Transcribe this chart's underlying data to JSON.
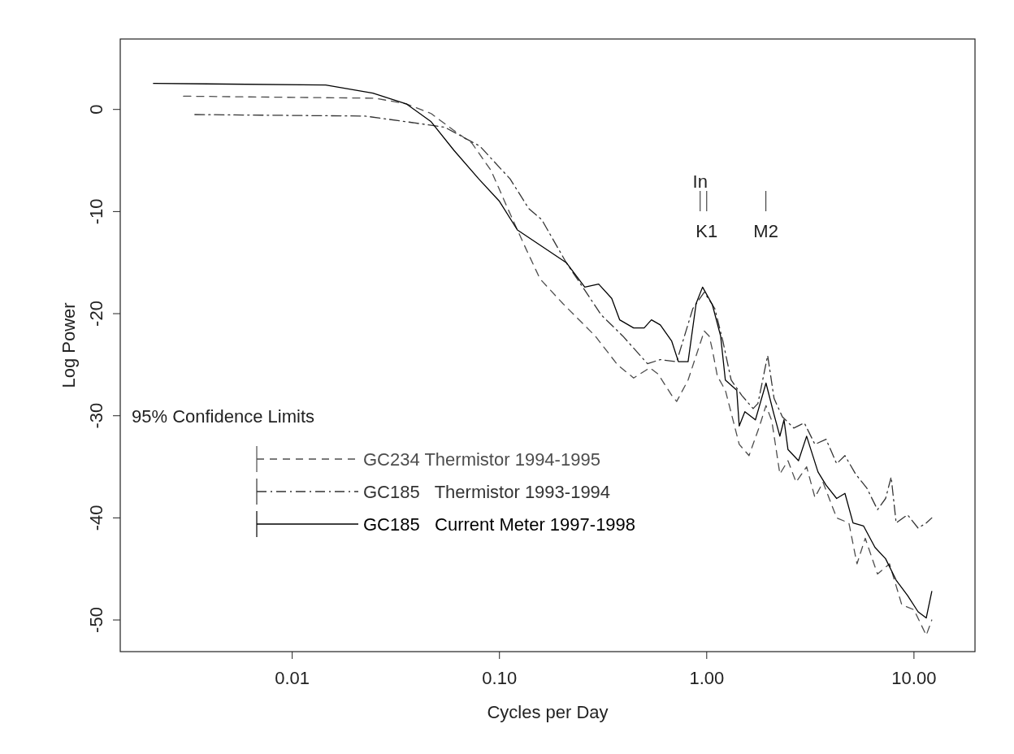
{
  "chart_data": {
    "type": "line",
    "xlabel": "Cycles per Day",
    "ylabel": "Log Power",
    "legend_title": "95% Confidence Limits",
    "legend": "bottom left",
    "log": "x",
    "grid": false,
    "xlim": [
      0.00148,
      19.7
    ],
    "ylim": [
      -53.1,
      6.9
    ],
    "xticks": [
      {
        "value": 0.01,
        "label": "0.01"
      },
      {
        "value": 0.1,
        "label": "0.10"
      },
      {
        "value": 1,
        "label": "1.00"
      },
      {
        "value": 10,
        "label": "10.00"
      }
    ],
    "yticks": [
      0,
      -10,
      -20,
      -30,
      -40,
      -50
    ],
    "ref_lines": [
      {
        "axis": "x",
        "value": 0.93,
        "label": "In"
      },
      {
        "axis": "x",
        "value": 1.0,
        "label": "K1"
      },
      {
        "axis": "x",
        "value": 1.93,
        "label": "M2"
      }
    ],
    "series": [
      {
        "name": "GC234 Thermistor 1994-1995",
        "color": "#4d4d4d",
        "line_style": "dashed",
        "x": [
          0.00299,
          0.0251,
          0.0355,
          0.0468,
          0.0597,
          0.0736,
          0.0912,
          0.1096,
          0.1346,
          0.157,
          0.202,
          0.29,
          0.371,
          0.444,
          0.531,
          0.582,
          0.678,
          0.716,
          0.813,
          0.973,
          1.028,
          1.064,
          1.125,
          1.23,
          1.435,
          1.6,
          1.799,
          1.932,
          2.061,
          2.254,
          2.466,
          2.698,
          3.034,
          3.327,
          3.639,
          4.236,
          4.853,
          5.309,
          5.821,
          6.668,
          7.621,
          8.73,
          10.0,
          11.46,
          12.19
        ],
        "values": [
          1.3,
          1.1,
          0.55,
          -0.4,
          -2.0,
          -3.3,
          -6.0,
          -9.7,
          -13.7,
          -16.6,
          -19.0,
          -22.2,
          -25.0,
          -26.3,
          -25.3,
          -25.9,
          -28.0,
          -28.6,
          -26.5,
          -21.7,
          -22.2,
          -23.5,
          -26.1,
          -27.5,
          -32.8,
          -33.9,
          -31.0,
          -29.0,
          -30.5,
          -35.7,
          -34.4,
          -36.5,
          -35.0,
          -38.0,
          -36.5,
          -40.0,
          -40.5,
          -44.5,
          -42.0,
          -45.5,
          -44.5,
          -48.5,
          -49.0,
          -51.5,
          -50.0
        ]
      },
      {
        "name": "GC185   Thermistor 1993-1994",
        "color": "#333333",
        "line_style": "dashdot",
        "x": [
          0.00339,
          0.0225,
          0.0355,
          0.0546,
          0.0805,
          0.1125,
          0.1384,
          0.16,
          0.21,
          0.258,
          0.309,
          0.394,
          0.518,
          0.597,
          0.716,
          0.857,
          0.973,
          1.094,
          1.197,
          1.312,
          1.476,
          1.675,
          1.766,
          1.968,
          2.113,
          2.317,
          2.63,
          2.958,
          3.327,
          3.767,
          4.236,
          4.645,
          5.224,
          5.929,
          6.668,
          7.295,
          7.762,
          8.204,
          9.311,
          10.47,
          11.46,
          12.19
        ],
        "values": [
          -0.5,
          -0.65,
          -1.2,
          -1.75,
          -3.6,
          -6.8,
          -9.7,
          -10.8,
          -15.0,
          -17.7,
          -20.1,
          -22.2,
          -24.9,
          -24.5,
          -24.7,
          -19.5,
          -17.9,
          -19.5,
          -22.7,
          -26.5,
          -28.0,
          -29.3,
          -28.8,
          -24.1,
          -28.3,
          -30.1,
          -31.2,
          -30.7,
          -32.8,
          -32.3,
          -34.7,
          -33.9,
          -35.7,
          -37.1,
          -39.2,
          -38.1,
          -36.0,
          -40.5,
          -39.7,
          -41.0,
          -40.5,
          -40.0
        ]
      },
      {
        "name": "GC185   Current Meter 1997-1998",
        "color": "#000000",
        "line_style": "solid",
        "x": [
          0.00214,
          0.0145,
          0.0245,
          0.0355,
          0.0468,
          0.0603,
          0.0794,
          0.1,
          0.122,
          0.21,
          0.258,
          0.301,
          0.348,
          0.38,
          0.444,
          0.499,
          0.541,
          0.597,
          0.678,
          0.73,
          0.813,
          0.889,
          0.955,
          1.064,
          1.167,
          1.23,
          1.396,
          1.435,
          1.528,
          1.718,
          1.932,
          2.113,
          2.254,
          2.36,
          2.466,
          2.773,
          3.034,
          3.443,
          3.767,
          4.236,
          4.645,
          5.082,
          5.715,
          6.486,
          7.295,
          8.204,
          9.311,
          10.47,
          11.46,
          12.19
        ],
        "values": [
          2.55,
          2.4,
          1.6,
          0.55,
          -1.2,
          -4.0,
          -6.8,
          -9.0,
          -11.8,
          -15.0,
          -17.4,
          -17.1,
          -18.5,
          -20.6,
          -21.4,
          -21.4,
          -20.6,
          -21.1,
          -22.7,
          -24.7,
          -24.7,
          -19.0,
          -17.4,
          -19.1,
          -22.2,
          -26.5,
          -27.5,
          -31.0,
          -29.6,
          -30.4,
          -26.8,
          -29.9,
          -32.0,
          -30.4,
          -33.3,
          -34.4,
          -32.0,
          -35.5,
          -36.8,
          -38.1,
          -37.6,
          -40.5,
          -40.8,
          -42.9,
          -44.0,
          -46.1,
          -47.6,
          -49.2,
          -49.8,
          -47.2
        ]
      }
    ]
  }
}
